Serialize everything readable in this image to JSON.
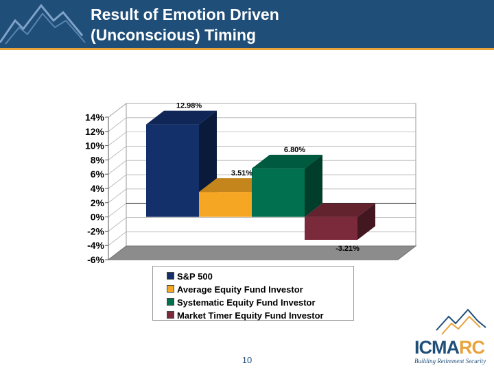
{
  "slide": {
    "title_lines": [
      "Result of Emotion Driven",
      "(Unconscious) Timing"
    ],
    "page_number": "10"
  },
  "logo": {
    "name_part1": "ICMA",
    "name_part2": "RC",
    "tagline": "Building Retirement Security"
  },
  "colors": {
    "header_bg": "#1f4e79",
    "header_rule": "#e8a33b"
  },
  "chart_data": {
    "type": "bar",
    "style": "3d",
    "title": "",
    "xlabel": "",
    "ylabel": "",
    "ylim": [
      -6,
      14
    ],
    "yticks": [
      -6,
      -4,
      -2,
      0,
      2,
      4,
      6,
      8,
      10,
      12,
      14
    ],
    "ytick_labels": [
      "-6%",
      "-4%",
      "-2%",
      "0%",
      "2%",
      "4%",
      "6%",
      "8%",
      "10%",
      "12%",
      "14%"
    ],
    "grid": true,
    "legend_position": "bottom",
    "series": [
      {
        "name": "S&P 500",
        "value": 12.98,
        "label": "12.98%",
        "color": "#13306b"
      },
      {
        "name": "Average Equity Fund Investor",
        "value": 3.51,
        "label": "3.51%",
        "color": "#f5a623"
      },
      {
        "name": "Systematic Equity Fund Investor",
        "value": 6.8,
        "label": "6.80%",
        "color": "#00704f"
      },
      {
        "name": "Market Timer Equity Fund Investor",
        "value": -3.21,
        "label": "-3.21%",
        "color": "#7a2a3a"
      }
    ]
  }
}
